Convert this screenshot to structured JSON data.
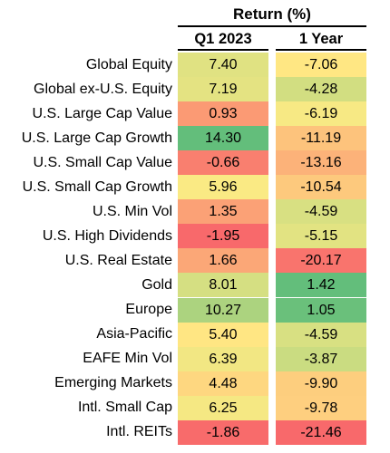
{
  "chart_data": {
    "type": "table",
    "title": "Return (%)",
    "columns": [
      "Q1 2023",
      "1 Year"
    ],
    "rows": [
      {
        "label": "Global Equity",
        "values": [
          "7.40",
          "-7.06"
        ]
      },
      {
        "label": "Global ex-U.S. Equity",
        "values": [
          "7.19",
          "-4.28"
        ]
      },
      {
        "label": "U.S. Large Cap Value",
        "values": [
          "0.93",
          "-6.19"
        ]
      },
      {
        "label": "U.S. Large Cap Growth",
        "values": [
          "14.30",
          "-11.19"
        ]
      },
      {
        "label": "U.S. Small Cap Value",
        "values": [
          "-0.66",
          "-13.16"
        ]
      },
      {
        "label": "U.S. Small Cap Growth",
        "values": [
          "5.96",
          "-10.54"
        ]
      },
      {
        "label": "U.S. Min Vol",
        "values": [
          "1.35",
          "-4.59"
        ]
      },
      {
        "label": "U.S. High Dividends",
        "values": [
          "-1.95",
          "-5.15"
        ]
      },
      {
        "label": "U.S. Real Estate",
        "values": [
          "1.66",
          "-20.17"
        ]
      },
      {
        "label": "Gold",
        "values": [
          "8.01",
          "1.42"
        ]
      },
      {
        "label": "Europe",
        "values": [
          "10.27",
          "1.05"
        ]
      },
      {
        "label": "Asia-Pacific",
        "values": [
          "5.40",
          "-4.59"
        ]
      },
      {
        "label": "EAFE Min Vol",
        "values": [
          "6.39",
          "-3.87"
        ]
      },
      {
        "label": "Emerging Markets",
        "values": [
          "4.48",
          "-9.90"
        ]
      },
      {
        "label": "Intl. Small Cap",
        "values": [
          "6.25",
          "-9.78"
        ]
      },
      {
        "label": "Intl. REITs",
        "values": [
          "-1.86",
          "-21.46"
        ]
      }
    ],
    "color_scale": {
      "low": "#f8696b",
      "mid": "#ffeb84",
      "high": "#63be7b"
    }
  }
}
